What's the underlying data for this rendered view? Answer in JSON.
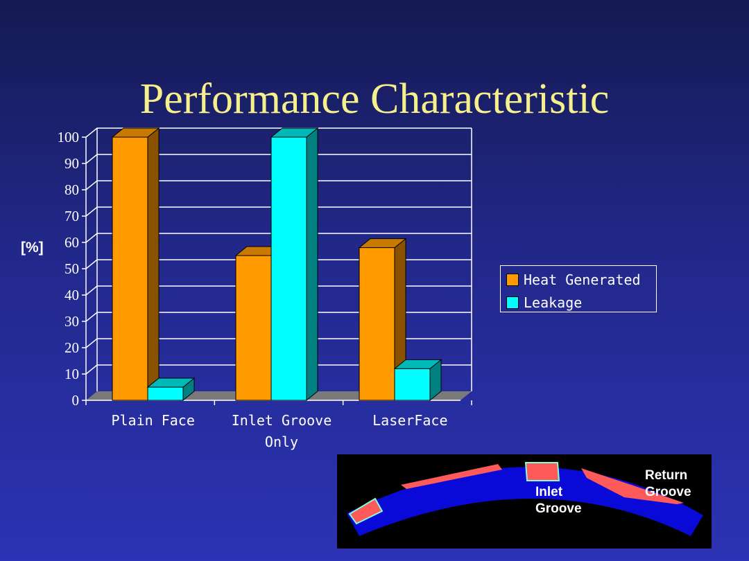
{
  "title": "Performance Characteristic",
  "colors": {
    "heat": "#ff9a00",
    "leakage": "#00ffff",
    "title": "#f6f08c"
  },
  "chart_data": {
    "type": "bar",
    "categories": [
      "Plain Face",
      "Inlet Groove Only",
      "LaserFace"
    ],
    "category_lines": [
      [
        "Plain Face"
      ],
      [
        "Inlet Groove",
        "Only"
      ],
      [
        "LaserFace"
      ]
    ],
    "series": [
      {
        "name": "Heat Generated",
        "values": [
          100,
          55,
          58
        ]
      },
      {
        "name": "Leakage",
        "values": [
          5,
          100,
          12
        ]
      }
    ],
    "ylabel": "[%]",
    "ylim": [
      0,
      100
    ],
    "yticks": [
      0,
      10,
      20,
      30,
      40,
      50,
      60,
      70,
      80,
      90,
      100
    ],
    "grid": true,
    "legend": "right",
    "style": "3d"
  },
  "inset": {
    "labels": {
      "inlet": "Inlet\nGroove",
      "return": "Return\nGroove"
    }
  }
}
